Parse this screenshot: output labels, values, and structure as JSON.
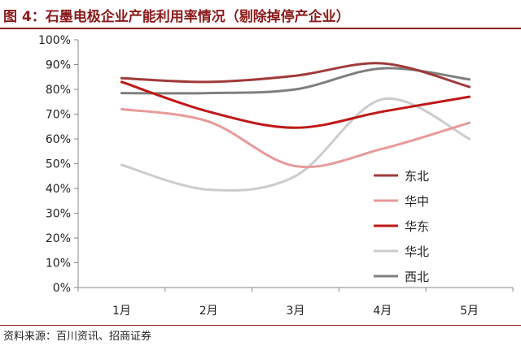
{
  "title": "图 4：石墨电极企业产能利用率情况（剔除掉停产企业）",
  "source": "资料来源：百川资讯、招商证券",
  "chart_data": {
    "type": "line",
    "categories": [
      "1月",
      "2月",
      "3月",
      "4月",
      "5月"
    ],
    "ylim": [
      0,
      100
    ],
    "yticks": [
      0,
      10,
      20,
      30,
      40,
      50,
      60,
      70,
      80,
      90,
      100
    ],
    "ytick_format": "%",
    "grid": false,
    "smooth": true,
    "legend_position": "right",
    "series": [
      {
        "name": "东北",
        "color": "#a03a3a",
        "values": [
          84.5,
          83,
          85.5,
          90.5,
          81
        ]
      },
      {
        "name": "华中",
        "color": "#e8999a",
        "values": [
          72,
          67,
          49,
          56,
          66.5
        ]
      },
      {
        "name": "华东",
        "color": "#c01818",
        "values": [
          83,
          71,
          64.5,
          71,
          77
        ]
      },
      {
        "name": "华北",
        "color": "#cccccc",
        "values": [
          49.5,
          39.5,
          45,
          76,
          60
        ]
      },
      {
        "name": "西北",
        "color": "#7f7f7f",
        "values": [
          78.5,
          78.5,
          80,
          88.5,
          84
        ]
      }
    ]
  }
}
